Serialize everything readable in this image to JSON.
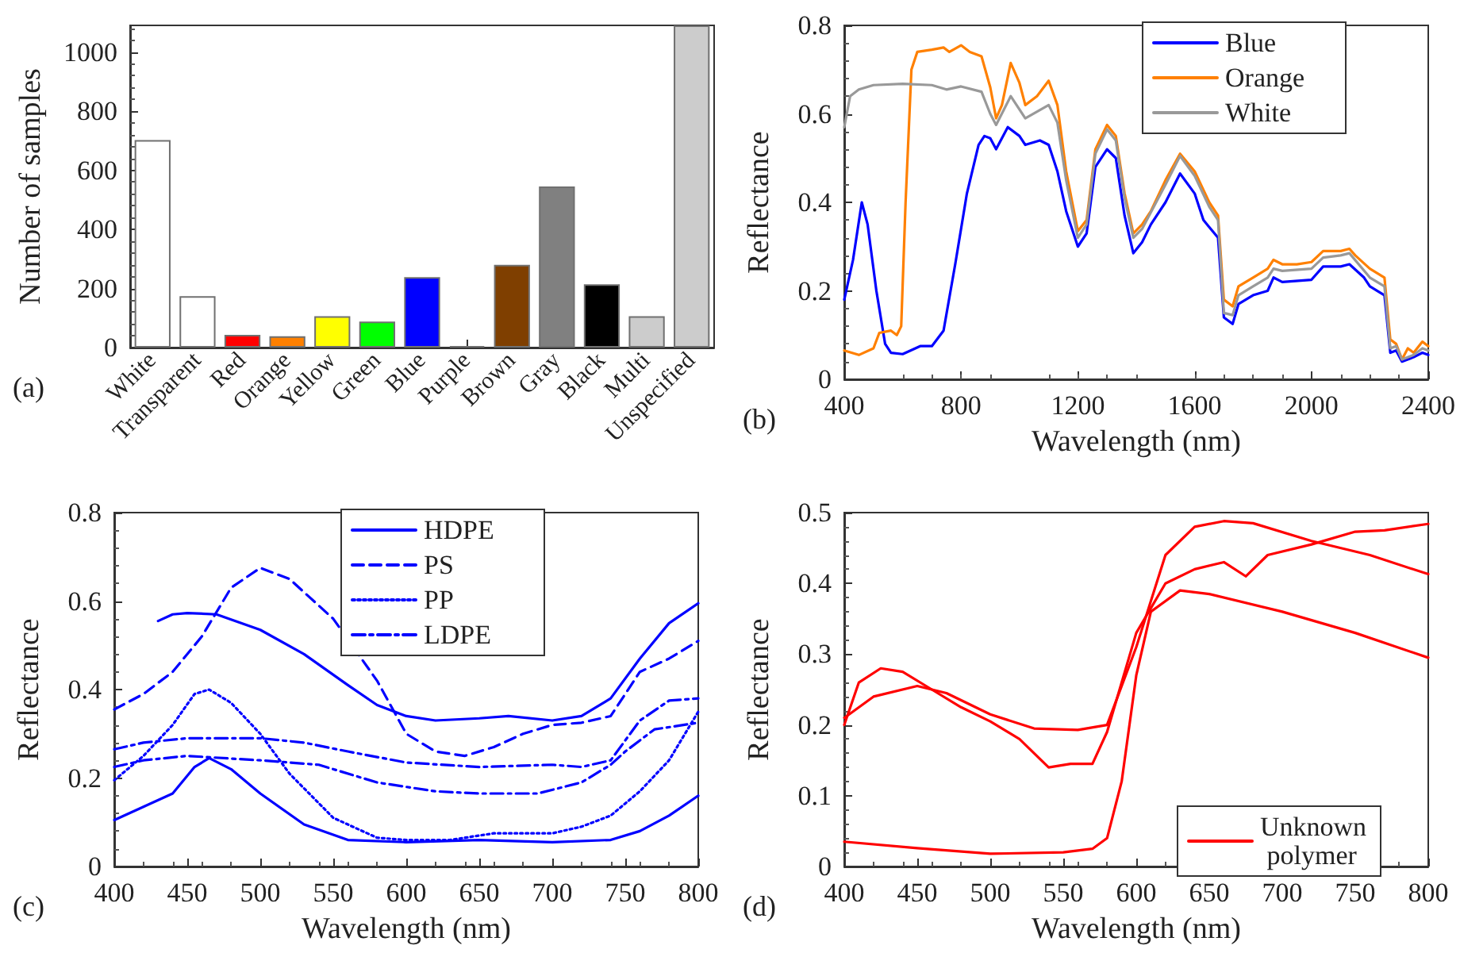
{
  "chart_data": [
    {
      "type": "bar",
      "ylabel": "Number of samples",
      "annotations": [
        "(a)"
      ],
      "categories": [
        "White",
        "Transparent",
        "Red",
        "Orange",
        "Yellow",
        "Green",
        "Blue",
        "Purple",
        "Brown",
        "Gray",
        "Black",
        "Multi",
        "Unspecified"
      ],
      "values": [
        702,
        174,
        43,
        38,
        106,
        88,
        238,
        5,
        280,
        545,
        214,
        106,
        1090
      ],
      "colors": [
        "#ffffff",
        "#ffffff",
        "#ff0000",
        "#ff8000",
        "#ffff00",
        "#00ff00",
        "#0000ff",
        "#707070",
        "#7f3f00",
        "#808080",
        "#000000",
        "#cccccc",
        "#cccccc"
      ],
      "ylim": [
        0,
        1090
      ],
      "yticks": [
        0,
        200,
        400,
        600,
        800,
        1000
      ],
      "grid": false
    },
    {
      "type": "line",
      "xlabel": "Wavelength (nm)",
      "ylabel": "Reflectance",
      "annotations": [
        "(b)"
      ],
      "xlim": [
        400,
        2400
      ],
      "xticks": [
        400,
        800,
        1200,
        1600,
        2000,
        2400
      ],
      "ylim": [
        0,
        0.8
      ],
      "yticks": [
        0,
        0.2,
        0.4,
        0.6,
        0.8
      ],
      "grid": false,
      "legend": "top right",
      "line_style": "solid",
      "series": [
        {
          "name": "Blue",
          "color": "#0000ff",
          "x": [
            400,
            430,
            460,
            480,
            510,
            540,
            560,
            600,
            660,
            700,
            740,
            780,
            820,
            860,
            880,
            900,
            920,
            960,
            1000,
            1020,
            1070,
            1100,
            1130,
            1160,
            1200,
            1230,
            1260,
            1300,
            1330,
            1360,
            1390,
            1420,
            1450,
            1500,
            1550,
            1600,
            1630,
            1680,
            1700,
            1730,
            1750,
            1800,
            1850,
            1870,
            1900,
            2000,
            2040,
            2100,
            2130,
            2180,
            2200,
            2250,
            2270,
            2290,
            2310,
            2350,
            2380,
            2400
          ],
          "values": [
            0.18,
            0.27,
            0.4,
            0.35,
            0.2,
            0.08,
            0.06,
            0.057,
            0.075,
            0.075,
            0.11,
            0.26,
            0.42,
            0.53,
            0.55,
            0.545,
            0.52,
            0.57,
            0.55,
            0.53,
            0.54,
            0.53,
            0.47,
            0.38,
            0.3,
            0.33,
            0.48,
            0.52,
            0.5,
            0.37,
            0.285,
            0.31,
            0.35,
            0.4,
            0.465,
            0.42,
            0.36,
            0.32,
            0.14,
            0.125,
            0.17,
            0.19,
            0.2,
            0.23,
            0.22,
            0.225,
            0.255,
            0.255,
            0.26,
            0.23,
            0.21,
            0.19,
            0.06,
            0.065,
            0.04,
            0.05,
            0.06,
            0.055
          ]
        },
        {
          "name": "Orange",
          "color": "#ff8000",
          "x": [
            400,
            450,
            500,
            520,
            560,
            580,
            595,
            610,
            630,
            650,
            700,
            740,
            760,
            800,
            830,
            870,
            900,
            920,
            940,
            970,
            1000,
            1020,
            1060,
            1100,
            1130,
            1160,
            1200,
            1230,
            1260,
            1300,
            1330,
            1360,
            1390,
            1420,
            1450,
            1500,
            1550,
            1600,
            1650,
            1680,
            1700,
            1730,
            1750,
            1800,
            1850,
            1870,
            1900,
            1950,
            2000,
            2040,
            2100,
            2130,
            2150,
            2200,
            2250,
            2270,
            2290,
            2310,
            2330,
            2350,
            2380,
            2400
          ],
          "values": [
            0.065,
            0.055,
            0.07,
            0.105,
            0.11,
            0.1,
            0.12,
            0.4,
            0.7,
            0.74,
            0.745,
            0.75,
            0.74,
            0.755,
            0.74,
            0.73,
            0.66,
            0.59,
            0.62,
            0.715,
            0.67,
            0.62,
            0.64,
            0.675,
            0.62,
            0.47,
            0.335,
            0.36,
            0.52,
            0.575,
            0.55,
            0.42,
            0.33,
            0.35,
            0.38,
            0.45,
            0.51,
            0.47,
            0.4,
            0.37,
            0.18,
            0.165,
            0.21,
            0.23,
            0.25,
            0.27,
            0.26,
            0.26,
            0.265,
            0.29,
            0.29,
            0.295,
            0.28,
            0.25,
            0.23,
            0.09,
            0.08,
            0.045,
            0.07,
            0.06,
            0.085,
            0.075
          ]
        },
        {
          "name": "White",
          "color": "#999999",
          "x": [
            400,
            420,
            450,
            500,
            600,
            700,
            750,
            800,
            870,
            900,
            920,
            970,
            1020,
            1100,
            1130,
            1160,
            1200,
            1230,
            1260,
            1300,
            1330,
            1360,
            1390,
            1420,
            1500,
            1550,
            1600,
            1650,
            1680,
            1700,
            1730,
            1750,
            1800,
            1850,
            1870,
            1900,
            2000,
            2040,
            2100,
            2130,
            2200,
            2250,
            2270,
            2290,
            2310,
            2350,
            2380,
            2400
          ],
          "values": [
            0.57,
            0.64,
            0.655,
            0.665,
            0.668,
            0.665,
            0.655,
            0.662,
            0.65,
            0.6,
            0.575,
            0.64,
            0.59,
            0.62,
            0.58,
            0.45,
            0.32,
            0.35,
            0.51,
            0.565,
            0.54,
            0.41,
            0.32,
            0.34,
            0.44,
            0.505,
            0.46,
            0.39,
            0.36,
            0.15,
            0.145,
            0.19,
            0.21,
            0.23,
            0.25,
            0.245,
            0.25,
            0.275,
            0.28,
            0.285,
            0.23,
            0.21,
            0.07,
            0.075,
            0.045,
            0.055,
            0.07,
            0.065
          ]
        }
      ]
    },
    {
      "type": "line",
      "xlabel": "Wavelength (nm)",
      "ylabel": "Reflectance",
      "annotations": [
        "(c)"
      ],
      "xlim": [
        400,
        800
      ],
      "xticks": [
        400,
        450,
        500,
        550,
        600,
        650,
        700,
        750,
        800
      ],
      "ylim": [
        0,
        0.8
      ],
      "yticks": [
        0,
        0.2,
        0.4,
        0.6,
        0.8
      ],
      "grid": false,
      "legend": "top",
      "series": [
        {
          "name": "HDPE",
          "color": "#0000ff",
          "line_style": "solid",
          "x": [
            430,
            440,
            450,
            470,
            500,
            530,
            560,
            580,
            600,
            620,
            650,
            670,
            700,
            720,
            740,
            760,
            780,
            800
          ],
          "values": [
            0.555,
            0.57,
            0.573,
            0.57,
            0.535,
            0.48,
            0.41,
            0.365,
            0.34,
            0.33,
            0.335,
            0.34,
            0.33,
            0.34,
            0.38,
            0.47,
            0.55,
            0.595
          ]
        },
        {
          "color": "#0000ff",
          "line_style": "solid",
          "x": [
            400,
            420,
            440,
            455,
            465,
            480,
            500,
            530,
            560,
            600,
            650,
            700,
            740,
            760,
            780,
            800
          ],
          "values": [
            0.105,
            0.135,
            0.165,
            0.225,
            0.245,
            0.22,
            0.165,
            0.095,
            0.06,
            0.055,
            0.06,
            0.055,
            0.06,
            0.08,
            0.115,
            0.16
          ]
        },
        {
          "name": "PS",
          "color": "#0000ff",
          "line_style": "dashed",
          "x": [
            400,
            420,
            440,
            460,
            480,
            500,
            520,
            550,
            580,
            600,
            620,
            640,
            660,
            680,
            700,
            720,
            740,
            760,
            780,
            800
          ],
          "values": [
            0.355,
            0.39,
            0.44,
            0.52,
            0.63,
            0.675,
            0.65,
            0.56,
            0.42,
            0.3,
            0.26,
            0.25,
            0.27,
            0.3,
            0.32,
            0.325,
            0.34,
            0.44,
            0.47,
            0.51
          ]
        },
        {
          "name": "PP",
          "color": "#0000ff",
          "line_style": "dotted",
          "x": [
            400,
            420,
            440,
            455,
            465,
            480,
            500,
            520,
            550,
            580,
            600,
            630,
            660,
            700,
            720,
            740,
            760,
            780,
            800
          ],
          "values": [
            0.195,
            0.25,
            0.32,
            0.39,
            0.4,
            0.37,
            0.3,
            0.21,
            0.11,
            0.065,
            0.06,
            0.06,
            0.075,
            0.075,
            0.09,
            0.115,
            0.17,
            0.24,
            0.35
          ]
        },
        {
          "name": "LDPE",
          "color": "#0000ff",
          "line_style": "dashdot",
          "x": [
            400,
            420,
            450,
            500,
            530,
            560,
            600,
            650,
            700,
            720,
            740,
            760,
            780,
            800
          ],
          "values": [
            0.265,
            0.28,
            0.29,
            0.29,
            0.28,
            0.26,
            0.235,
            0.225,
            0.23,
            0.225,
            0.24,
            0.33,
            0.375,
            0.38
          ]
        },
        {
          "color": "#0000ff",
          "line_style": "dashdot",
          "x": [
            400,
            420,
            450,
            500,
            540,
            580,
            620,
            650,
            690,
            720,
            740,
            750,
            770,
            800
          ],
          "values": [
            0.225,
            0.24,
            0.25,
            0.24,
            0.23,
            0.19,
            0.17,
            0.165,
            0.165,
            0.19,
            0.23,
            0.26,
            0.31,
            0.325
          ]
        }
      ]
    },
    {
      "type": "line",
      "xlabel": "Wavelength (nm)",
      "ylabel": "Reflectance",
      "annotations": [
        "(d)"
      ],
      "xlim": [
        400,
        800
      ],
      "xticks": [
        400,
        450,
        500,
        550,
        600,
        650,
        700,
        750,
        800
      ],
      "ylim": [
        0,
        0.5
      ],
      "yticks": [
        0,
        0.1,
        0.2,
        0.3,
        0.4,
        0.5
      ],
      "grid": false,
      "legend": "bottom right",
      "line_style": "solid",
      "series": [
        {
          "name": "Unknown polymer",
          "color": "#ff0000",
          "x": [
            400,
            450,
            500,
            550,
            570,
            580,
            590,
            600,
            610,
            630,
            650,
            700,
            750,
            800
          ],
          "values": [
            0.035,
            0.026,
            0.018,
            0.02,
            0.025,
            0.04,
            0.12,
            0.27,
            0.36,
            0.39,
            0.385,
            0.36,
            0.33,
            0.295
          ]
        },
        {
          "color": "#ff0000",
          "x": [
            400,
            410,
            425,
            440,
            460,
            480,
            500,
            520,
            540,
            555,
            570,
            580,
            600,
            620,
            640,
            660,
            675,
            690,
            720,
            750,
            770,
            800
          ],
          "values": [
            0.2,
            0.26,
            0.28,
            0.275,
            0.25,
            0.225,
            0.205,
            0.18,
            0.14,
            0.145,
            0.145,
            0.19,
            0.33,
            0.4,
            0.42,
            0.43,
            0.41,
            0.44,
            0.455,
            0.473,
            0.475,
            0.484
          ]
        },
        {
          "color": "#ff0000",
          "x": [
            400,
            420,
            450,
            470,
            500,
            530,
            560,
            580,
            600,
            620,
            640,
            660,
            680,
            720,
            760,
            800
          ],
          "values": [
            0.21,
            0.24,
            0.255,
            0.245,
            0.215,
            0.195,
            0.193,
            0.2,
            0.31,
            0.44,
            0.48,
            0.488,
            0.485,
            0.46,
            0.44,
            0.413
          ]
        }
      ]
    }
  ]
}
